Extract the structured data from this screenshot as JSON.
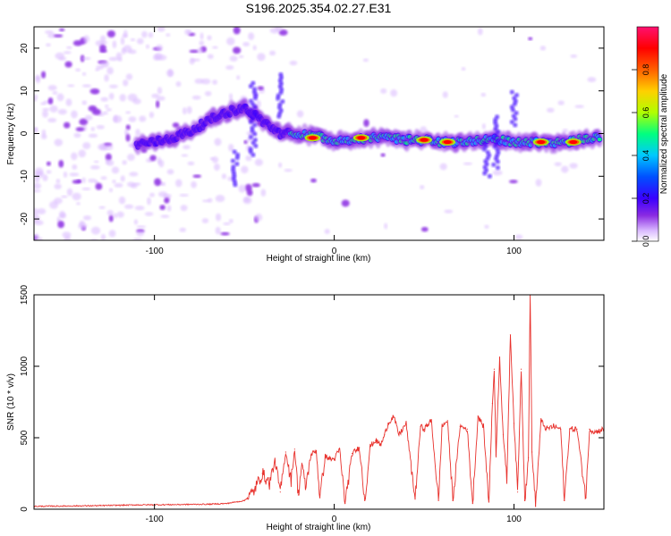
{
  "title": "S196.2025.354.02.27.E31",
  "colors": {
    "line": "#e8312c",
    "ridge": "#5a00e0",
    "ramp": [
      "#ffffff",
      "#d9b8ff",
      "#8a2be2",
      "#3a00ff",
      "#0050ff",
      "#00c8ff",
      "#00ff80",
      "#b0ff00",
      "#ffd000",
      "#ff6000",
      "#ff0000",
      "#ff1070"
    ]
  },
  "chart_data": [
    {
      "type": "heatmap",
      "title": "S196.2025.354.02.27.E31",
      "xlabel": "Height of straight line (km)",
      "ylabel": "Frequency (Hz)",
      "xlim": [
        -167,
        150
      ],
      "ylim": [
        -25,
        25
      ],
      "xticks": [
        -100,
        0,
        100
      ],
      "yticks": [
        -20,
        -10,
        0,
        10,
        20
      ],
      "colorbar": {
        "label": "Normalized spectral amplitude",
        "range": [
          0,
          1
        ],
        "ticks": [
          "0.0",
          "0.2",
          "0.4",
          "0.6",
          "0.8"
        ]
      },
      "ridge": {
        "x": [
          -110,
          -100,
          -90,
          -80,
          -70,
          -60,
          -50,
          -40,
          -30,
          -20,
          -10,
          0,
          10,
          20,
          30,
          40,
          50,
          60,
          70,
          80,
          90,
          100,
          110,
          120,
          130,
          140,
          148
        ],
        "y": [
          -2.5,
          -2,
          -1,
          0.5,
          3,
          5,
          6,
          3,
          0,
          0,
          -0.5,
          -1.5,
          -1.5,
          -1,
          -1,
          -1.5,
          -1.5,
          -2,
          -2,
          -1.5,
          -1.5,
          -2,
          -2,
          -2,
          -2,
          -1,
          -1
        ]
      },
      "hot_spots": [
        {
          "x": -12,
          "y": -1
        },
        {
          "x": 15,
          "y": -1
        },
        {
          "x": 50,
          "y": -1.5
        },
        {
          "x": 63,
          "y": -2
        },
        {
          "x": 115,
          "y": -2
        },
        {
          "x": 133,
          "y": -2
        }
      ]
    },
    {
      "type": "line",
      "xlabel": "Height of straight line (km)",
      "ylabel": "SNR (10 * v/v)",
      "xlim": [
        -167,
        150
      ],
      "ylim": [
        0,
        1500
      ],
      "xticks": [
        -100,
        0,
        100
      ],
      "yticks": [
        0,
        500,
        1000,
        1500
      ],
      "series": [
        {
          "name": "SNR",
          "x": [
            -167,
            -150,
            -130,
            -110,
            -90,
            -70,
            -60,
            -50,
            -45,
            -40,
            -36,
            -33,
            -30,
            -27,
            -24,
            -22,
            -20,
            -18,
            -16,
            -13,
            -10,
            -8,
            -5,
            -2,
            0,
            3,
            6,
            10,
            14,
            17,
            20,
            23,
            26,
            28,
            30,
            33,
            36,
            40,
            45,
            48,
            50,
            54,
            58,
            60,
            63,
            66,
            70,
            74,
            77,
            80,
            83,
            86,
            88,
            89,
            90,
            92,
            94,
            96,
            98,
            100,
            102,
            104,
            106,
            108,
            109,
            110,
            112,
            115,
            118,
            122,
            126,
            128,
            131,
            135,
            140,
            142,
            145,
            150
          ],
          "y": [
            20,
            22,
            25,
            30,
            32,
            35,
            40,
            60,
            120,
            250,
            180,
            340,
            120,
            400,
            200,
            420,
            100,
            320,
            150,
            380,
            410,
            80,
            370,
            350,
            350,
            420,
            40,
            390,
            430,
            60,
            440,
            480,
            450,
            520,
            600,
            650,
            520,
            600,
            70,
            580,
            560,
            620,
            60,
            580,
            620,
            60,
            580,
            560,
            40,
            650,
            580,
            50,
            740,
            980,
            380,
            1060,
            520,
            200,
            1220,
            600,
            120,
            980,
            60,
            360,
            1500,
            400,
            20,
            620,
            560,
            580,
            560,
            60,
            560,
            560,
            80,
            560,
            540,
            560
          ]
        }
      ]
    }
  ]
}
